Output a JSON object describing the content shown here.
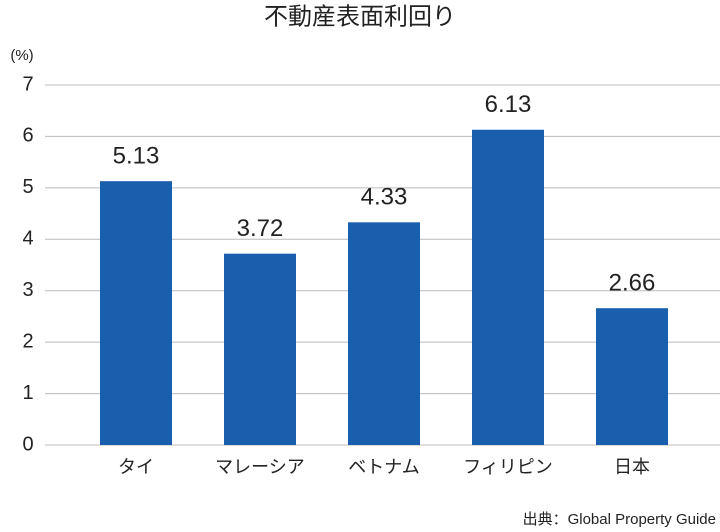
{
  "chart_data": {
    "type": "bar",
    "title": "不動産表面利回り",
    "y_unit_label": "(%)",
    "categories": [
      "タイ",
      "マレーシア",
      "ベトナム",
      "フィリピン",
      "日本"
    ],
    "values": [
      5.13,
      3.72,
      4.33,
      6.13,
      2.66
    ],
    "color": "#1a5fae",
    "ylim": [
      0,
      7
    ],
    "yticks": [
      0,
      1,
      2,
      3,
      4,
      5,
      6,
      7
    ],
    "grid": true,
    "source": "出典：Global Property Guide"
  }
}
